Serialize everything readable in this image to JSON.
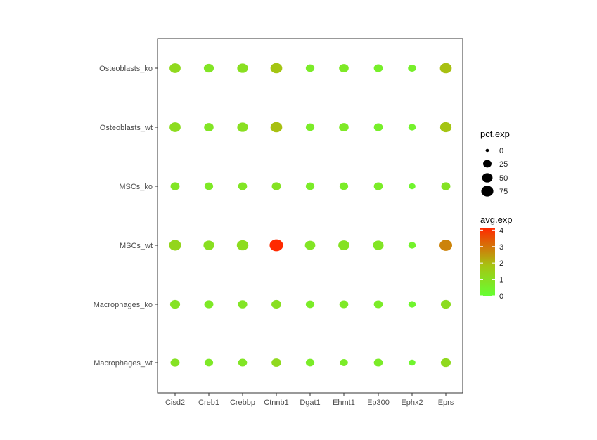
{
  "chart_data": {
    "type": "scatter",
    "subtype": "dot-plot",
    "title": "",
    "xlabel": "",
    "ylabel": "",
    "genes": [
      "Cisd2",
      "Creb1",
      "Crebbp",
      "Ctnnb1",
      "Dgat1",
      "Ehmt1",
      "Ep300",
      "Ephx2",
      "Eprs"
    ],
    "groups": [
      "Osteoblasts_ko",
      "Osteoblasts_wt",
      "MSCs_ko",
      "MSCs_wt",
      "Macrophages_ko",
      "Macrophages_wt"
    ],
    "pct_exp": [
      [
        55,
        40,
        50,
        65,
        25,
        35,
        28,
        20,
        65
      ],
      [
        55,
        35,
        50,
        65,
        25,
        35,
        28,
        15,
        60
      ],
      [
        30,
        25,
        28,
        30,
        25,
        25,
        28,
        10,
        30
      ],
      [
        70,
        50,
        62,
        95,
        45,
        55,
        48,
        15,
        80
      ],
      [
        40,
        30,
        32,
        38,
        25,
        28,
        28,
        15,
        40
      ],
      [
        30,
        25,
        28,
        35,
        25,
        20,
        28,
        10,
        40
      ]
    ],
    "avg_exp": [
      [
        1.2,
        0.8,
        1.0,
        1.8,
        0.6,
        0.7,
        0.5,
        0.5,
        1.9
      ],
      [
        1.1,
        0.8,
        1.0,
        1.9,
        0.6,
        0.7,
        0.5,
        0.4,
        1.8
      ],
      [
        0.8,
        0.7,
        0.8,
        0.9,
        0.6,
        0.6,
        0.6,
        0.3,
        0.9
      ],
      [
        1.3,
        1.0,
        1.1,
        4.1,
        0.8,
        0.9,
        0.8,
        0.4,
        2.8
      ],
      [
        0.9,
        0.7,
        0.8,
        1.0,
        0.6,
        0.7,
        0.6,
        0.3,
        1.1
      ],
      [
        0.9,
        0.7,
        0.8,
        1.2,
        0.6,
        0.6,
        0.6,
        0.3,
        1.2
      ]
    ],
    "legend_size": {
      "title": "pct.exp",
      "breaks": [
        0,
        25,
        50,
        75
      ],
      "labels": [
        "0",
        "25",
        "50",
        "75"
      ]
    },
    "legend_color": {
      "title": "avg.exp",
      "low_color": "#66ff33",
      "mid_color": "#a6c412",
      "high_color": "#ff2a00",
      "limits": [
        0,
        4.1
      ],
      "breaks": [
        0,
        1,
        2,
        3,
        4
      ],
      "labels": [
        "0",
        "1",
        "2",
        "3",
        "4"
      ]
    },
    "legend_placement": "right",
    "grid": false
  }
}
